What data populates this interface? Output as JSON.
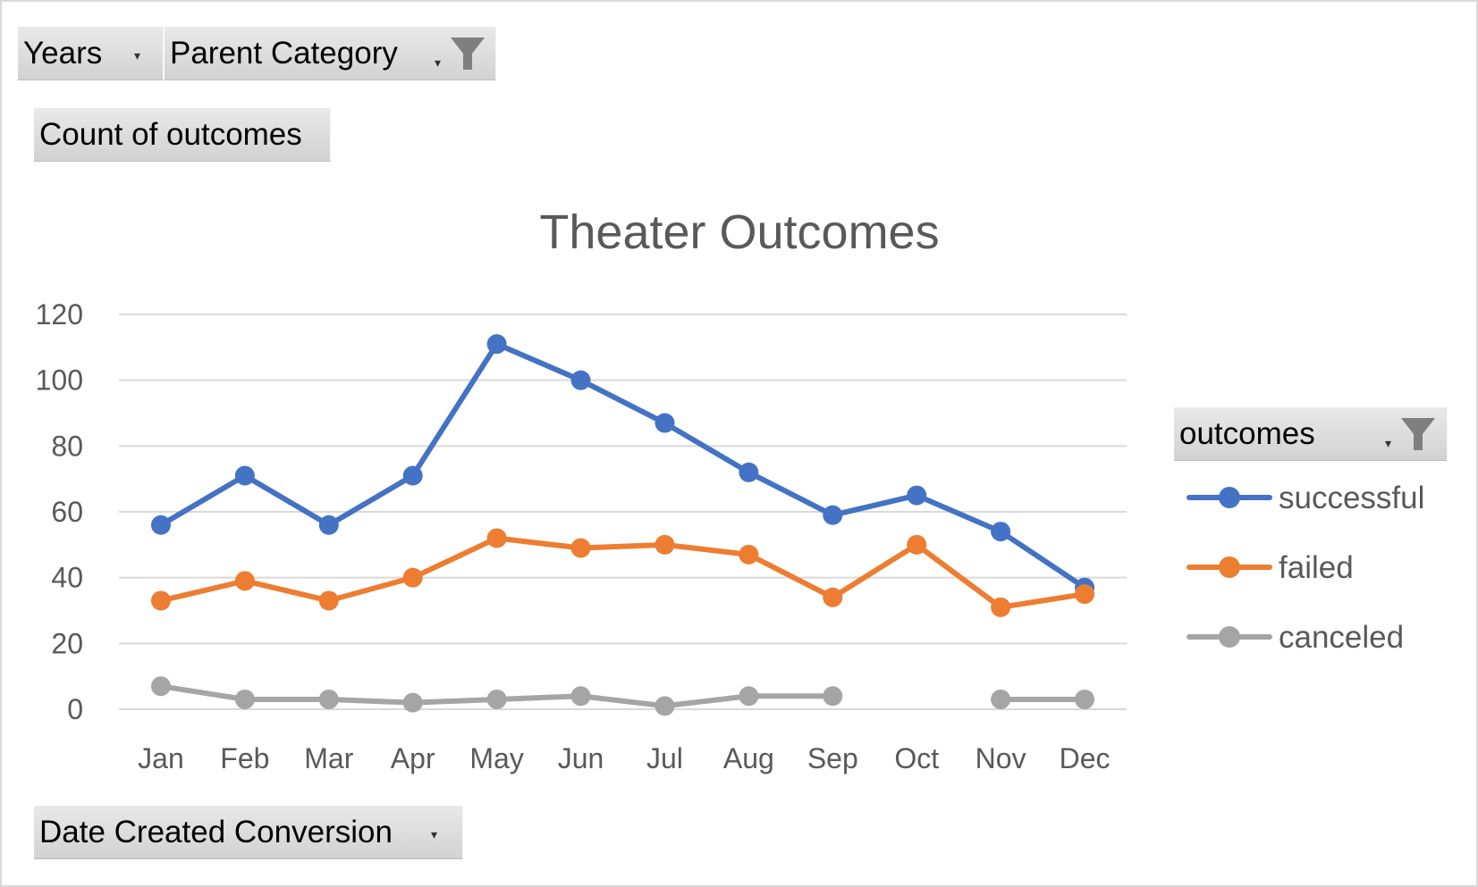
{
  "filters": {
    "years_label": "Years",
    "parent_category_label": "Parent Category",
    "value_field_label": "Count of outcomes",
    "axis_field_label": "Date Created Conversion",
    "legend_field_label": "outcomes"
  },
  "icons": {
    "dropdown": "dropdown-arrow-icon",
    "filter": "funnel-filter-icon"
  },
  "colors": {
    "successful": "#4472C4",
    "failed": "#ED7D31",
    "canceled": "#A5A5A5",
    "grid": "#d9d9d9",
    "text": "#595959"
  },
  "chart_data": {
    "type": "line",
    "title": "Theater Outcomes",
    "xlabel": "",
    "ylabel": "",
    "ylim": [
      0,
      120
    ],
    "yticks": [
      0,
      20,
      40,
      60,
      80,
      100,
      120
    ],
    "grid": true,
    "legend_position": "right",
    "categories": [
      "Jan",
      "Feb",
      "Mar",
      "Apr",
      "May",
      "Jun",
      "Jul",
      "Aug",
      "Sep",
      "Oct",
      "Nov",
      "Dec"
    ],
    "series": [
      {
        "name": "successful",
        "values": [
          56,
          71,
          56,
          71,
          111,
          100,
          87,
          72,
          59,
          65,
          54,
          37
        ]
      },
      {
        "name": "failed",
        "values": [
          33,
          39,
          33,
          40,
          52,
          49,
          50,
          47,
          34,
          50,
          31,
          35
        ]
      },
      {
        "name": "canceled",
        "values": [
          7,
          3,
          3,
          2,
          3,
          4,
          1,
          4,
          4,
          null,
          3,
          3
        ]
      }
    ]
  }
}
